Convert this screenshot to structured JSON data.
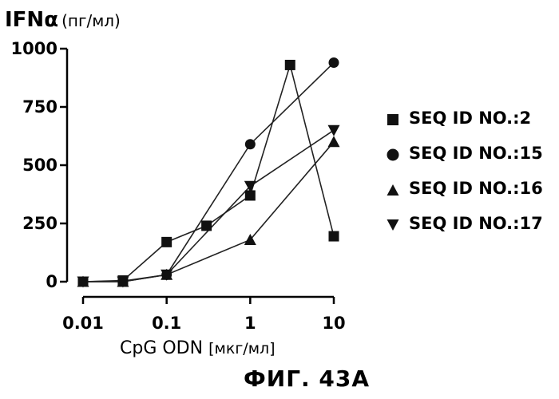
{
  "chart_data": {
    "type": "line",
    "title": "",
    "ylabel": "IFNα",
    "ylabel_unit": "(пг/мл)",
    "xlabel": "CpG ODN",
    "xlabel_unit": "[мкг/мл]",
    "x_scale": "log",
    "xlim": [
      0.01,
      10
    ],
    "ylim": [
      0,
      1000
    ],
    "x_ticks": [
      0.01,
      0.1,
      1,
      10
    ],
    "x_tick_labels": [
      "0.01",
      "0.1",
      "1",
      "10"
    ],
    "y_ticks": [
      0,
      250,
      500,
      750,
      1000
    ],
    "y_tick_labels": [
      "0",
      "250",
      "500",
      "750",
      "1000"
    ],
    "legend_position": "right",
    "series": [
      {
        "name": "SEQ ID NO.:2",
        "marker": "square",
        "x": [
          0.01,
          0.03,
          0.1,
          0.3,
          1,
          3,
          10
        ],
        "values": [
          0,
          5,
          170,
          240,
          370,
          930,
          195
        ]
      },
      {
        "name": "SEQ ID NO.:15",
        "marker": "circle",
        "x": [
          0.01,
          0.03,
          0.1,
          1,
          10
        ],
        "values": [
          0,
          3,
          30,
          590,
          940
        ]
      },
      {
        "name": "SEQ ID NO.:16",
        "marker": "triangle-up",
        "x": [
          0.01,
          0.03,
          0.1,
          1,
          10
        ],
        "values": [
          0,
          0,
          30,
          180,
          600
        ]
      },
      {
        "name": "SEQ ID NO.:17",
        "marker": "triangle-down",
        "x": [
          0.01,
          0.03,
          0.1,
          1,
          10
        ],
        "values": [
          0,
          0,
          30,
          410,
          650
        ]
      }
    ]
  },
  "figure_caption": "ФИГ. 43А"
}
